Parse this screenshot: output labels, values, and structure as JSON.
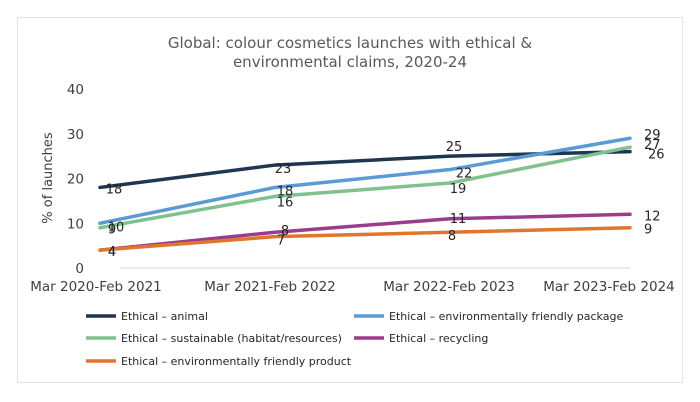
{
  "chart_data": {
    "type": "line",
    "title_lines": [
      "Global: colour cosmetics launches with ethical &",
      "environmental claims, 2020-24"
    ],
    "ylabel": "% of launches",
    "xlabel": "",
    "ylim": [
      0,
      40
    ],
    "yticks": [
      0,
      10,
      20,
      30,
      40
    ],
    "grid": false,
    "legend_position": "bottom",
    "categories": [
      "Mar 2020-Feb 2021",
      "Mar 2021-Feb 2022",
      "Mar 2022-Feb 2023",
      "Mar 2023-Feb 2024"
    ],
    "series": [
      {
        "name": "Ethical – animal",
        "color": "#1f3552",
        "values": [
          18,
          23,
          25,
          26
        ]
      },
      {
        "name": "Ethical – environmentally friendly package",
        "color": "#5b9bd5",
        "values": [
          10,
          18,
          22,
          29
        ]
      },
      {
        "name": "Ethical – sustainable (habitat/resources)",
        "color": "#7fc28f",
        "values": [
          9,
          16,
          19,
          27
        ]
      },
      {
        "name": "Ethical – recycling",
        "color": "#9b3d8c",
        "values": [
          4,
          8,
          11,
          12
        ]
      },
      {
        "name": "Ethical – environmentally friendly product",
        "color": "#e0762c",
        "values": [
          4,
          7,
          8,
          9
        ]
      }
    ]
  }
}
